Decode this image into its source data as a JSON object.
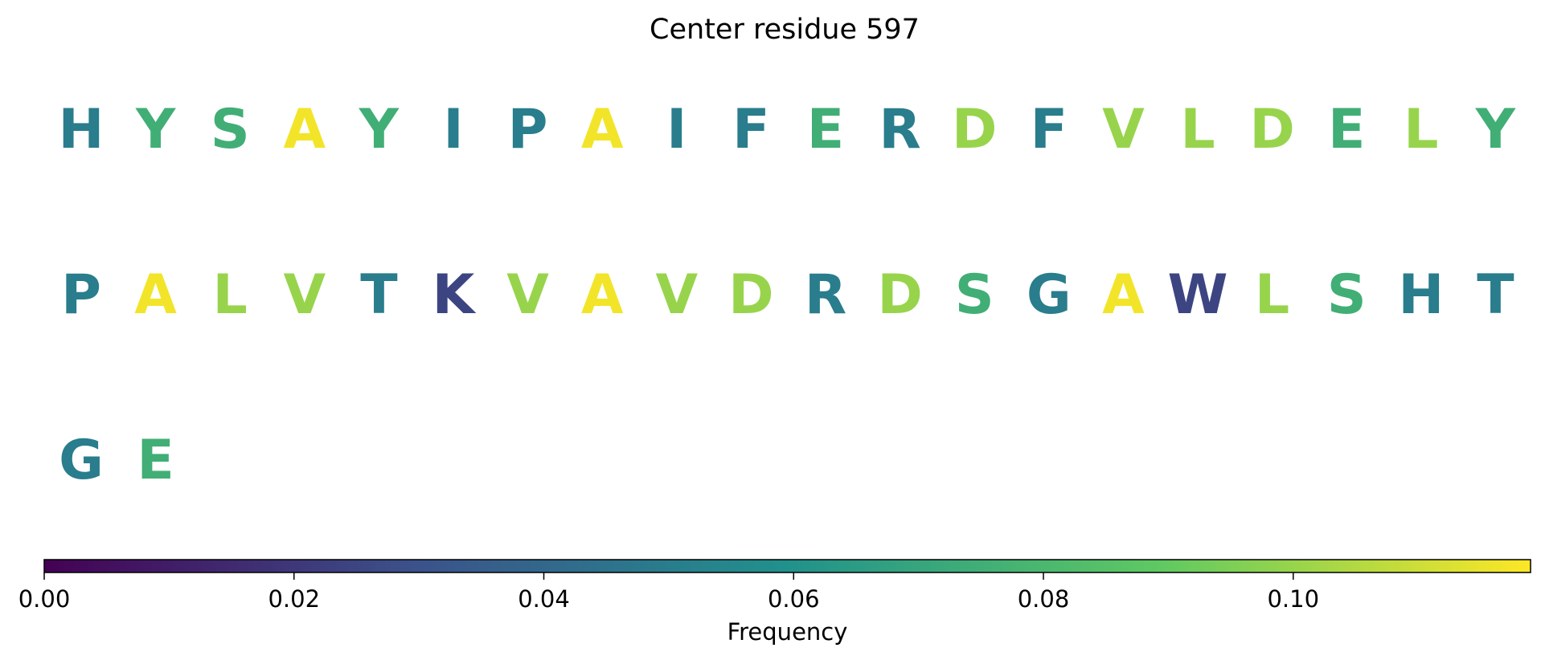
{
  "chart_data": {
    "type": "heatmap",
    "title": "Center residue 597",
    "columns_per_row": 20,
    "residues": [
      {
        "letter": "H",
        "value": 0.05
      },
      {
        "letter": "Y",
        "value": 0.075
      },
      {
        "letter": "S",
        "value": 0.075
      },
      {
        "letter": "A",
        "value": 0.117
      },
      {
        "letter": "Y",
        "value": 0.075
      },
      {
        "letter": "I",
        "value": 0.05
      },
      {
        "letter": "P",
        "value": 0.05
      },
      {
        "letter": "A",
        "value": 0.117
      },
      {
        "letter": "I",
        "value": 0.05
      },
      {
        "letter": "F",
        "value": 0.05
      },
      {
        "letter": "E",
        "value": 0.075
      },
      {
        "letter": "R",
        "value": 0.05
      },
      {
        "letter": "D",
        "value": 0.1
      },
      {
        "letter": "F",
        "value": 0.05
      },
      {
        "letter": "V",
        "value": 0.1
      },
      {
        "letter": "L",
        "value": 0.1
      },
      {
        "letter": "D",
        "value": 0.1
      },
      {
        "letter": "E",
        "value": 0.075
      },
      {
        "letter": "L",
        "value": 0.1
      },
      {
        "letter": "Y",
        "value": 0.075
      },
      {
        "letter": "P",
        "value": 0.05
      },
      {
        "letter": "A",
        "value": 0.117
      },
      {
        "letter": "L",
        "value": 0.1
      },
      {
        "letter": "V",
        "value": 0.1
      },
      {
        "letter": "T",
        "value": 0.05
      },
      {
        "letter": "K",
        "value": 0.025
      },
      {
        "letter": "V",
        "value": 0.1
      },
      {
        "letter": "A",
        "value": 0.117
      },
      {
        "letter": "V",
        "value": 0.1
      },
      {
        "letter": "D",
        "value": 0.1
      },
      {
        "letter": "R",
        "value": 0.05
      },
      {
        "letter": "D",
        "value": 0.1
      },
      {
        "letter": "S",
        "value": 0.075
      },
      {
        "letter": "G",
        "value": 0.05
      },
      {
        "letter": "A",
        "value": 0.117
      },
      {
        "letter": "W",
        "value": 0.025
      },
      {
        "letter": "L",
        "value": 0.1
      },
      {
        "letter": "S",
        "value": 0.075
      },
      {
        "letter": "H",
        "value": 0.05
      },
      {
        "letter": "T",
        "value": 0.05
      },
      {
        "letter": "G",
        "value": 0.05
      },
      {
        "letter": "E",
        "value": 0.075
      }
    ],
    "colorbar": {
      "label": "Frequency",
      "range": [
        0,
        0.119
      ],
      "ticks": [
        0.0,
        0.02,
        0.04,
        0.06,
        0.08,
        0.1
      ],
      "tick_labels": [
        "0.00",
        "0.02",
        "0.04",
        "0.06",
        "0.08",
        "0.10"
      ],
      "colormap": "viridis",
      "orientation": "horizontal"
    },
    "colors": [
      "#440154",
      "#3b528b",
      "#21918c",
      "#5ec962",
      "#fde725"
    ]
  }
}
